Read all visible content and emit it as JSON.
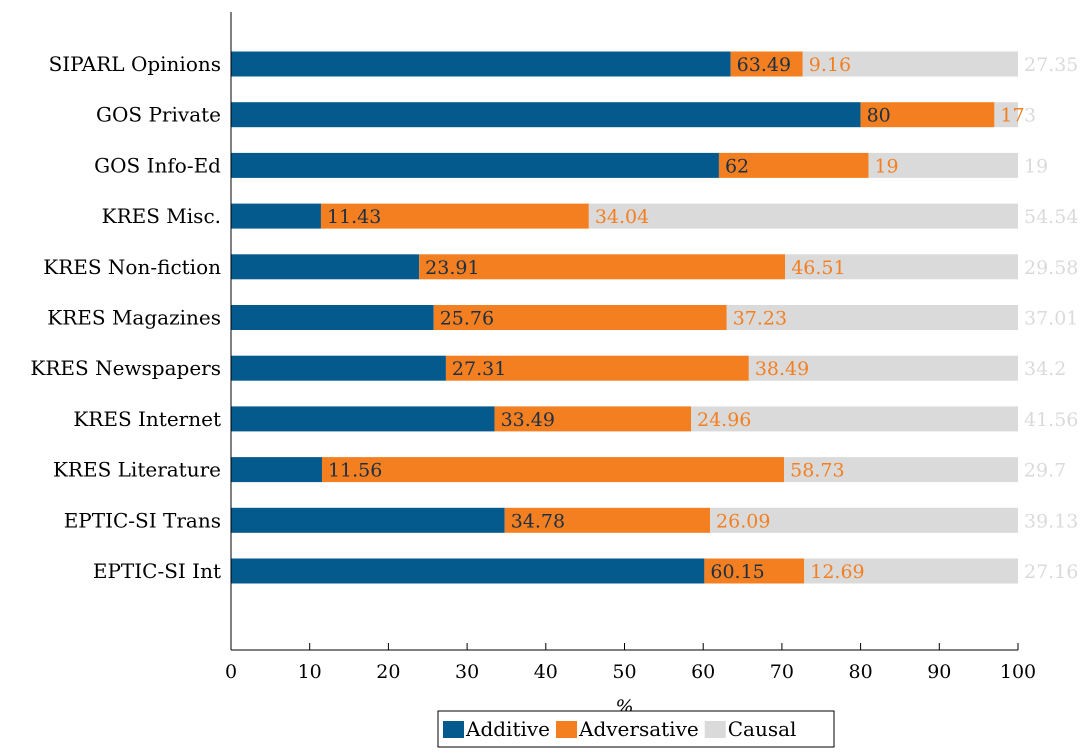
{
  "chart_data": {
    "type": "bar",
    "orientation": "horizontal",
    "stacked": true,
    "xlabel": "%",
    "ylabel": "",
    "xlim": [
      0,
      100
    ],
    "xticks": [
      0,
      10,
      20,
      30,
      40,
      50,
      60,
      70,
      80,
      90,
      100
    ],
    "grid": false,
    "legend_position": "bottom-center",
    "categories": [
      "SIPARL Opinions",
      "GOS Private",
      "GOS Info-Ed",
      "KRES Misc.",
      "KRES Non-fiction",
      "KRES Magazines",
      "KRES Newspapers",
      "KRES Internet",
      "KRES Literature",
      "EPTIC-SI Trans",
      "EPTIC-SI Int"
    ],
    "series": [
      {
        "name": "Additive",
        "color": "#045a8d",
        "label_color": "#1b2f45",
        "values": [
          63.49,
          80,
          62,
          11.43,
          23.91,
          25.76,
          27.31,
          33.49,
          11.56,
          34.78,
          60.15
        ],
        "labels": [
          "63.49",
          "80",
          "62",
          "11.43",
          "23.91",
          "25.76",
          "27.31",
          "33.49",
          "11.56",
          "34.78",
          "60.15"
        ]
      },
      {
        "name": "Adversative",
        "color": "#f47f20",
        "label_color": "#f47f20",
        "values": [
          9.16,
          17,
          19,
          34.04,
          46.51,
          37.23,
          38.49,
          24.96,
          58.73,
          26.09,
          12.69
        ],
        "labels": [
          "9.16",
          "17",
          "19",
          "34.04",
          "46.51",
          "37.23",
          "38.49",
          "24.96",
          "58.73",
          "26.09",
          "12.69"
        ]
      },
      {
        "name": "Causal",
        "color": "#dadada",
        "label_color": "#dadada",
        "values": [
          27.35,
          3,
          19,
          54.54,
          29.58,
          37.01,
          34.2,
          41.56,
          29.7,
          39.13,
          27.16
        ],
        "labels": [
          "27.35",
          "3",
          "19",
          "54.54",
          "29.58",
          "37.01",
          "34.2",
          "41.56",
          "29.7",
          "39.13",
          "27.16"
        ]
      }
    ]
  }
}
